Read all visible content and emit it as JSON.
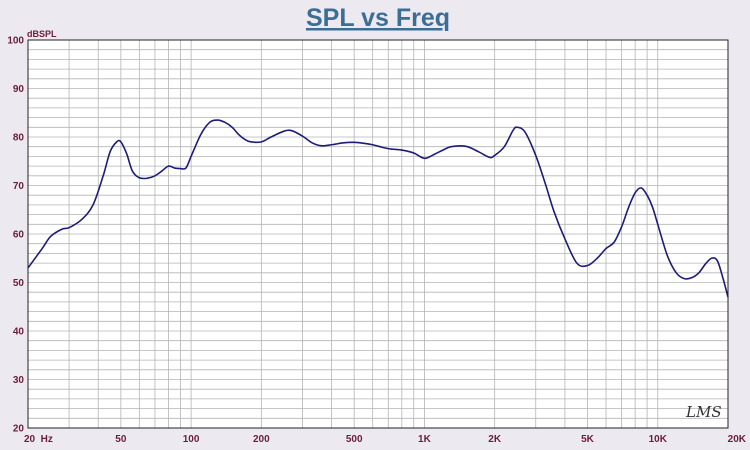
{
  "colors": {
    "background": "#ece9f0",
    "plot_background": "#ffffff",
    "grid": "#b4b4b4",
    "frame": "#222222",
    "title": "#3b6e95",
    "labels": "#6a1e3a",
    "curve": "#1c1c7a"
  },
  "logo": "LMS",
  "chart_data": {
    "type": "line",
    "title": "SPL vs Freq",
    "xlabel": "",
    "ylabel": "dBSPL",
    "x_scale": "log",
    "xlim": [
      20,
      20000
    ],
    "ylim": [
      20,
      100
    ],
    "grid": true,
    "x_ticks": [
      {
        "value": 20,
        "label": "20  Hz"
      },
      {
        "value": 50,
        "label": "50"
      },
      {
        "value": 100,
        "label": "100"
      },
      {
        "value": 200,
        "label": "200"
      },
      {
        "value": 500,
        "label": "500"
      },
      {
        "value": 1000,
        "label": "1K"
      },
      {
        "value": 2000,
        "label": "2K"
      },
      {
        "value": 5000,
        "label": "5K"
      },
      {
        "value": 10000,
        "label": "10K"
      },
      {
        "value": 20000,
        "label": "20K"
      }
    ],
    "y_ticks": [
      20,
      30,
      40,
      50,
      60,
      70,
      80,
      90,
      100
    ],
    "series": [
      {
        "x": [
          20,
          23,
          25,
          28,
          30,
          34,
          38,
          42,
          45,
          48,
          50,
          53,
          56,
          60,
          65,
          70,
          75,
          80,
          85,
          90,
          95,
          100,
          110,
          120,
          130,
          140,
          150,
          160,
          170,
          180,
          200,
          220,
          250,
          270,
          300,
          330,
          360,
          400,
          450,
          500,
          550,
          600,
          700,
          800,
          900,
          1000,
          1100,
          1200,
          1300,
          1500,
          1700,
          1900,
          2000,
          2200,
          2400,
          2500,
          2700,
          3000,
          3300,
          3600,
          4000,
          4500,
          5000,
          5500,
          6000,
          6500,
          7000,
          7500,
          8000,
          8500,
          9000,
          9500,
          10000,
          11000,
          12000,
          13000,
          14000,
          15000,
          16000,
          17000,
          18000,
          19000,
          20000
        ],
        "y": [
          53,
          57,
          59.5,
          61,
          61.3,
          63,
          66,
          72,
          77,
          79,
          79,
          76.5,
          73,
          71.6,
          71.5,
          72,
          73,
          74,
          73.6,
          73.5,
          73.6,
          76,
          80.5,
          83,
          83.5,
          83,
          82,
          80.5,
          79.5,
          79,
          79,
          80,
          81.2,
          81.3,
          80.2,
          78.8,
          78.2,
          78.4,
          78.8,
          78.9,
          78.7,
          78.4,
          77.6,
          77.3,
          76.7,
          75.6,
          76.4,
          77.3,
          78,
          78.1,
          77,
          75.8,
          76.2,
          78,
          81.4,
          82,
          81,
          76.2,
          70.3,
          64.5,
          59,
          54,
          53.5,
          55,
          57,
          58.3,
          61.5,
          65.5,
          68.5,
          69.5,
          68,
          65.5,
          62,
          55.5,
          52,
          50.8,
          51,
          52,
          53.8,
          55,
          54.5,
          51,
          47
        ]
      }
    ]
  }
}
